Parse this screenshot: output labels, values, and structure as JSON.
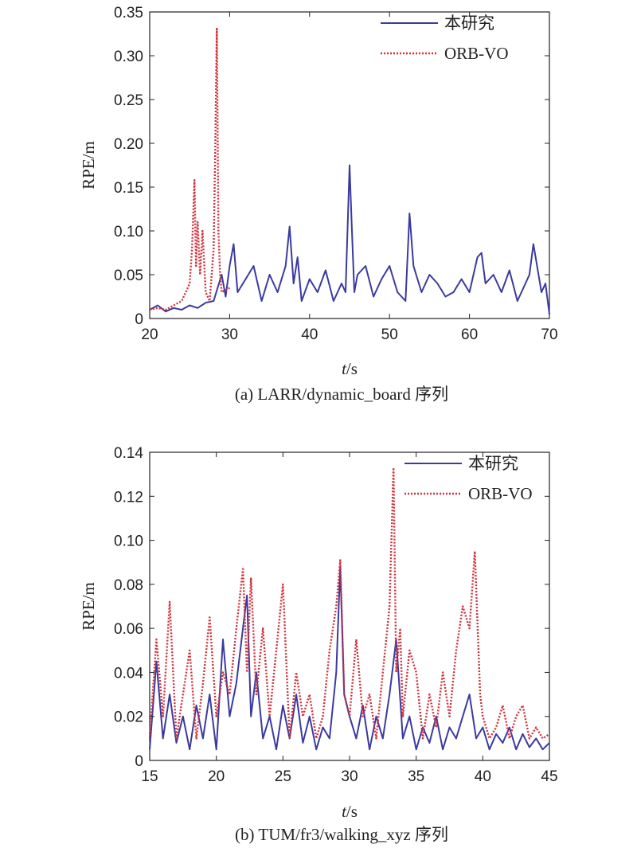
{
  "chart_data": [
    {
      "type": "line",
      "panel": "a",
      "caption": "(a) LARR/dynamic_board 序列",
      "xlabel_italic": "t",
      "xlabel_unit": "/s",
      "ylabel": "RPE/m",
      "xlim": [
        20,
        70
      ],
      "ylim": [
        0,
        0.35
      ],
      "xticks": [
        "20",
        "30",
        "40",
        "50",
        "60",
        "70"
      ],
      "yticks": [
        "0",
        "0.05",
        "0.10",
        "0.15",
        "0.20",
        "0.25",
        "0.30",
        "0.35"
      ],
      "legend_position": "top-right",
      "grid": false,
      "series": [
        {
          "name": "本研究",
          "color": "#3a3aa0",
          "style": "solid",
          "x": [
            20,
            21,
            22,
            23,
            24,
            25,
            26,
            27,
            28,
            28.5,
            29,
            29.5,
            30,
            30.5,
            31,
            32,
            33,
            34,
            35,
            36,
            37,
            37.5,
            38,
            38.5,
            39,
            40,
            41,
            42,
            43,
            44,
            44.5,
            45,
            45.3,
            45.6,
            46,
            47,
            48,
            49,
            50,
            51,
            52,
            52.5,
            53,
            54,
            55,
            56,
            57,
            58,
            59,
            60,
            61,
            61.5,
            62,
            63,
            64,
            65,
            66,
            67,
            67.5,
            68,
            69,
            69.5,
            70
          ],
          "y": [
            0.01,
            0.015,
            0.008,
            0.012,
            0.01,
            0.015,
            0.012,
            0.018,
            0.02,
            0.035,
            0.05,
            0.025,
            0.06,
            0.085,
            0.03,
            0.045,
            0.06,
            0.02,
            0.05,
            0.03,
            0.06,
            0.105,
            0.04,
            0.07,
            0.02,
            0.045,
            0.03,
            0.055,
            0.02,
            0.04,
            0.03,
            0.175,
            0.1,
            0.03,
            0.05,
            0.06,
            0.025,
            0.045,
            0.06,
            0.03,
            0.02,
            0.12,
            0.06,
            0.03,
            0.05,
            0.04,
            0.025,
            0.03,
            0.045,
            0.03,
            0.07,
            0.075,
            0.04,
            0.05,
            0.03,
            0.055,
            0.02,
            0.04,
            0.05,
            0.085,
            0.03,
            0.04,
            0.005
          ]
        },
        {
          "name": "ORB-VO",
          "color": "#d0303a",
          "style": "dotted",
          "x": [
            20,
            21,
            22,
            23,
            24,
            25,
            25.3,
            25.6,
            25.8,
            26,
            26.3,
            26.6,
            27,
            27.5,
            28,
            28.2,
            28.4,
            28.6,
            28.8,
            29,
            30
          ],
          "y": [
            0.01,
            0.012,
            0.01,
            0.015,
            0.02,
            0.04,
            0.08,
            0.158,
            0.06,
            0.11,
            0.05,
            0.1,
            0.03,
            0.02,
            0.08,
            0.19,
            0.332,
            0.1,
            0.05,
            0.03,
            0.035
          ]
        }
      ]
    },
    {
      "type": "line",
      "panel": "b",
      "caption": "(b) TUM/fr3/walking_xyz 序列",
      "xlabel_italic": "t",
      "xlabel_unit": "/s",
      "ylabel": "RPE/m",
      "xlim": [
        15,
        45
      ],
      "ylim": [
        0,
        0.14
      ],
      "xticks": [
        "15",
        "20",
        "25",
        "30",
        "35",
        "40",
        "45"
      ],
      "yticks": [
        "0",
        "0.02",
        "0.04",
        "0.06",
        "0.08",
        "0.10",
        "0.12",
        "0.14"
      ],
      "legend_position": "top-right",
      "grid": false,
      "series": [
        {
          "name": "本研究",
          "color": "#3a3aa0",
          "style": "solid",
          "x": [
            15,
            15.5,
            16,
            16.5,
            17,
            17.5,
            18,
            18.5,
            19,
            19.5,
            20,
            20.5,
            21,
            21.5,
            22,
            22.3,
            22.6,
            23,
            23.5,
            24,
            24.5,
            25,
            25.5,
            26,
            26.5,
            27,
            27.5,
            28,
            28.5,
            29,
            29.3,
            29.6,
            30,
            30.5,
            31,
            31.5,
            32,
            32.5,
            33,
            33.5,
            34,
            34.5,
            35,
            35.5,
            36,
            36.5,
            37,
            37.5,
            38,
            38.5,
            39,
            39.5,
            40,
            40.5,
            41,
            41.5,
            42,
            42.5,
            43,
            43.5,
            44,
            44.5,
            45
          ],
          "y": [
            0.005,
            0.045,
            0.01,
            0.03,
            0.008,
            0.02,
            0.005,
            0.025,
            0.01,
            0.03,
            0.005,
            0.055,
            0.02,
            0.035,
            0.06,
            0.075,
            0.02,
            0.04,
            0.01,
            0.02,
            0.005,
            0.025,
            0.01,
            0.03,
            0.008,
            0.02,
            0.005,
            0.015,
            0.01,
            0.04,
            0.088,
            0.03,
            0.02,
            0.01,
            0.025,
            0.005,
            0.02,
            0.01,
            0.03,
            0.055,
            0.01,
            0.02,
            0.005,
            0.015,
            0.008,
            0.02,
            0.005,
            0.015,
            0.01,
            0.02,
            0.03,
            0.01,
            0.015,
            0.005,
            0.012,
            0.008,
            0.015,
            0.005,
            0.012,
            0.006,
            0.01,
            0.005,
            0.008
          ]
        },
        {
          "name": "ORB-VO",
          "color": "#d0303a",
          "style": "dotted",
          "x": [
            15,
            15.5,
            16,
            16.5,
            17,
            17.5,
            18,
            18.5,
            19,
            19.5,
            20,
            20.5,
            21,
            21.5,
            22,
            22.3,
            22.6,
            23,
            23.5,
            24,
            24.5,
            25,
            25.5,
            26,
            26.5,
            27,
            27.5,
            28,
            28.5,
            29,
            29.3,
            29.6,
            30,
            30.5,
            31,
            31.5,
            32,
            32.5,
            33,
            33.3,
            33.5,
            33.8,
            34,
            34.5,
            35,
            35.5,
            36,
            36.5,
            37,
            37.5,
            38,
            38.5,
            39,
            39.4,
            39.8,
            40,
            40.5,
            41,
            41.5,
            42,
            42.5,
            43,
            43.5,
            44,
            44.5,
            45
          ],
          "y": [
            0.01,
            0.055,
            0.02,
            0.072,
            0.01,
            0.03,
            0.05,
            0.01,
            0.035,
            0.065,
            0.02,
            0.04,
            0.03,
            0.06,
            0.087,
            0.04,
            0.083,
            0.03,
            0.06,
            0.02,
            0.05,
            0.08,
            0.01,
            0.04,
            0.02,
            0.03,
            0.01,
            0.02,
            0.05,
            0.07,
            0.091,
            0.03,
            0.02,
            0.055,
            0.02,
            0.03,
            0.01,
            0.04,
            0.07,
            0.133,
            0.04,
            0.06,
            0.02,
            0.05,
            0.04,
            0.01,
            0.03,
            0.015,
            0.04,
            0.02,
            0.05,
            0.07,
            0.06,
            0.095,
            0.03,
            0.02,
            0.01,
            0.015,
            0.025,
            0.01,
            0.02,
            0.025,
            0.01,
            0.015,
            0.01,
            0.012
          ]
        }
      ]
    }
  ]
}
